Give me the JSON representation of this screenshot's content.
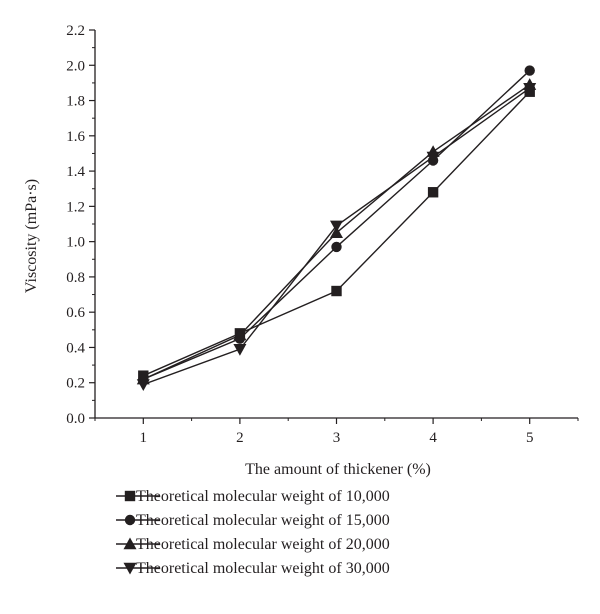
{
  "chart_data": {
    "type": "line",
    "title": "",
    "xlabel": "The amount of thickener (%)",
    "ylabel": "Viscosity (mPa·s)",
    "x": [
      1,
      2,
      3,
      4,
      5
    ],
    "xlim": [
      0.5,
      5.5
    ],
    "ylim": [
      0.0,
      2.2
    ],
    "x_ticks": [
      "1",
      "2",
      "3",
      "4",
      "5"
    ],
    "y_ticks": [
      "0.0",
      "0.2",
      "0.4",
      "0.6",
      "0.8",
      "1.0",
      "1.2",
      "1.4",
      "1.6",
      "1.8",
      "2.0",
      "2.2"
    ],
    "grid": false,
    "legend_position": "bottom",
    "series": [
      {
        "name": "Theoretical molecular weight of 10,000",
        "marker": "square",
        "values": [
          0.24,
          0.48,
          0.72,
          1.28,
          1.85
        ]
      },
      {
        "name": "Theoretical molecular weight of 15,000",
        "marker": "circle",
        "values": [
          0.22,
          0.45,
          0.97,
          1.46,
          1.97
        ]
      },
      {
        "name": "Theoretical molecular weight of 20,000",
        "marker": "triangle-up",
        "values": [
          0.22,
          0.47,
          1.05,
          1.51,
          1.89
        ]
      },
      {
        "name": "Theoretical molecular weight of 30,000",
        "marker": "triangle-down",
        "values": [
          0.19,
          0.39,
          1.09,
          1.48,
          1.87
        ]
      }
    ],
    "colors": {
      "line": "#231f20",
      "background": "#ffffff"
    }
  }
}
